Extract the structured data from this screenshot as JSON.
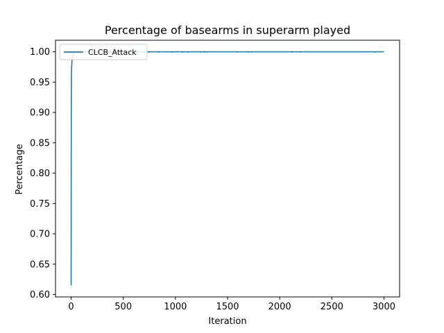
{
  "chart_data": {
    "type": "line",
    "title": "Percentage of basearms in superarm played",
    "xlabel": "Iteration",
    "ylabel": "Percentage",
    "xlim": [
      -150,
      3150
    ],
    "ylim": [
      0.596,
      1.019
    ],
    "xticks": [
      0,
      500,
      1000,
      1500,
      2000,
      2500,
      3000
    ],
    "xtick_labels": [
      "0",
      "500",
      "1000",
      "1500",
      "2000",
      "2500",
      "3000"
    ],
    "yticks": [
      0.6,
      0.65,
      0.7,
      0.75,
      0.8,
      0.85,
      0.9,
      0.95,
      1.0
    ],
    "ytick_labels": [
      "0.60",
      "0.65",
      "0.70",
      "0.75",
      "0.80",
      "0.85",
      "0.90",
      "0.95",
      "1.00"
    ],
    "grid": false,
    "legend_position": "top-left",
    "series": [
      {
        "name": "CLCB_Attack",
        "color": "#1f77b4",
        "x": [
          0,
          1,
          2,
          3,
          5,
          8,
          10,
          15,
          20,
          25,
          30,
          40,
          50,
          60,
          80,
          100,
          150,
          200,
          300,
          500,
          750,
          1000,
          1500,
          2000,
          2500,
          3000
        ],
        "y": [
          0.615,
          0.88,
          0.93,
          0.965,
          0.975,
          0.985,
          0.99,
          0.993,
          0.995,
          0.997,
          0.998,
          0.999,
          0.999,
          1.0,
          1.0,
          1.0,
          1.0,
          1.0,
          1.0,
          1.0,
          1.0,
          1.0,
          1.0,
          1.0,
          1.0,
          1.0
        ]
      }
    ],
    "dips": {
      "y": 0.9985,
      "x": [
        10,
        25,
        60,
        110,
        160,
        280,
        750,
        840,
        970,
        1070,
        1120,
        1240,
        1275,
        1300,
        1590,
        1700,
        1730,
        2120,
        2200,
        2910
      ]
    }
  }
}
